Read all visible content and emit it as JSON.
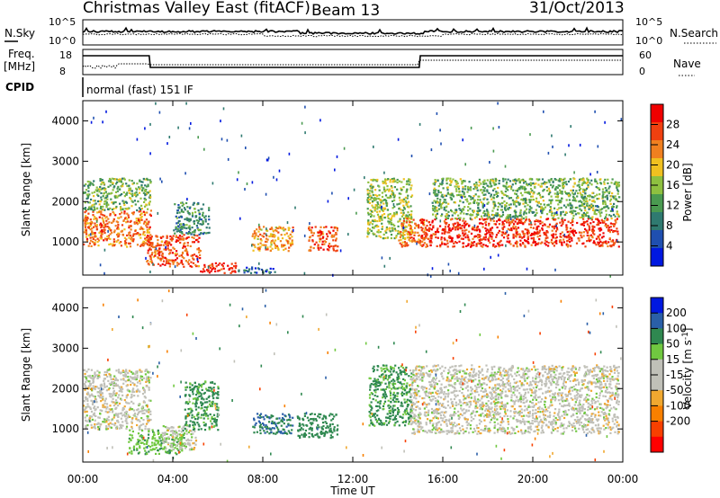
{
  "header": {
    "station": "Christmas Valley East (fitACF)",
    "beam": "Beam 13",
    "date": "31/Oct/2013"
  },
  "top_panels": {
    "nsky_label": "N.Sky",
    "nsearch_label": "N.Search",
    "nsky_ticks": [
      "10^5",
      "10^0"
    ],
    "nsearch_ticks": [
      "10^5",
      "10^0"
    ],
    "freq_label_line1": "Freq.",
    "freq_label_line2": "[MHz]",
    "freq_ticks": [
      "18",
      "8"
    ],
    "nave_label": "Nave",
    "nave_ticks": [
      "60",
      "0"
    ],
    "cpid_label": "CPID",
    "cpid_text": "normal (fast) 151 IF"
  },
  "colors": {
    "power_scale": [
      "#0018e0",
      "#1f4fb0",
      "#2f7a70",
      "#4a9a50",
      "#8ec040",
      "#f0c020",
      "#f08020",
      "#f04010",
      "#f00000"
    ],
    "velocity_scale": [
      "#ff0000",
      "#f84000",
      "#f88000",
      "#f0a830",
      "#c0c0b8",
      "#c0c0b8",
      "#70c840",
      "#2f8850",
      "#2a5fa8",
      "#0018e0"
    ]
  },
  "chart_data": [
    {
      "type": "heatmap",
      "panel": "power",
      "ylabel": "Slant Range [km]",
      "ylim": [
        180,
        4500
      ],
      "yticks": [
        1000,
        2000,
        3000,
        4000
      ],
      "xlim_hours": [
        0,
        24
      ],
      "xticks": [
        "00:00",
        "04:00",
        "08:00",
        "12:00",
        "16:00",
        "20:00",
        "00:00"
      ],
      "colorbar_label": "Power [dB]",
      "colorbar_ticks": [
        4,
        8,
        12,
        16,
        20,
        24,
        28
      ],
      "colorbar_range": [
        0,
        32
      ],
      "echo_regions": [
        {
          "t": [
            0.0,
            3.0
          ],
          "range": [
            900,
            1800
          ],
          "power": 24
        },
        {
          "t": [
            0.0,
            3.0
          ],
          "range": [
            1800,
            2600
          ],
          "power": 14
        },
        {
          "t": [
            2.8,
            5.2
          ],
          "range": [
            400,
            1200
          ],
          "power": 26
        },
        {
          "t": [
            4.0,
            5.6
          ],
          "range": [
            1200,
            2000
          ],
          "power": 10
        },
        {
          "t": [
            5.2,
            6.8
          ],
          "range": [
            250,
            500
          ],
          "power": 28
        },
        {
          "t": [
            6.8,
            8.5
          ],
          "range": [
            250,
            400
          ],
          "power": 6
        },
        {
          "t": [
            7.5,
            9.3
          ],
          "range": [
            800,
            1400
          ],
          "power": 22
        },
        {
          "t": [
            10.0,
            11.3
          ],
          "range": [
            800,
            1400
          ],
          "power": 26
        },
        {
          "t": [
            12.6,
            14.6
          ],
          "range": [
            1100,
            2600
          ],
          "power": 16
        },
        {
          "t": [
            14.0,
            15.2
          ],
          "range": [
            900,
            1600
          ],
          "power": 24
        },
        {
          "t": [
            15.0,
            23.8
          ],
          "range": [
            900,
            1600
          ],
          "power": 28
        },
        {
          "t": [
            15.5,
            23.8
          ],
          "range": [
            1600,
            2600
          ],
          "power": 14
        }
      ]
    },
    {
      "type": "heatmap",
      "panel": "velocity",
      "ylabel": "Slant Range [km]",
      "xlabel": "Time UT",
      "ylim": [
        180,
        4500
      ],
      "yticks": [
        1000,
        2000,
        3000,
        4000
      ],
      "xlim_hours": [
        0,
        24
      ],
      "xticks": [
        "00:00",
        "04:00",
        "08:00",
        "12:00",
        "16:00",
        "20:00",
        "00:00"
      ],
      "colorbar_label": "Velocity [m s^-1]",
      "colorbar_ticks": [
        200,
        100,
        50,
        15,
        -15,
        -50,
        -100,
        -200
      ],
      "echo_regions": [
        {
          "t": [
            0.0,
            3.0
          ],
          "range": [
            1000,
            2500
          ],
          "velocity": 0
        },
        {
          "t": [
            2.0,
            4.5
          ],
          "range": [
            400,
            1000
          ],
          "velocity": 40
        },
        {
          "t": [
            3.5,
            5.0
          ],
          "range": [
            500,
            1100
          ],
          "velocity": 0
        },
        {
          "t": [
            4.5,
            6.0
          ],
          "range": [
            1000,
            2200
          ],
          "velocity": 60
        },
        {
          "t": [
            7.5,
            9.3
          ],
          "range": [
            900,
            1400
          ],
          "velocity": 100
        },
        {
          "t": [
            9.5,
            11.3
          ],
          "range": [
            800,
            1400
          ],
          "velocity": 80
        },
        {
          "t": [
            12.7,
            14.6
          ],
          "range": [
            1100,
            2600
          ],
          "velocity": 60
        },
        {
          "t": [
            14.5,
            23.8
          ],
          "range": [
            900,
            2600
          ],
          "velocity": 0
        }
      ]
    }
  ]
}
